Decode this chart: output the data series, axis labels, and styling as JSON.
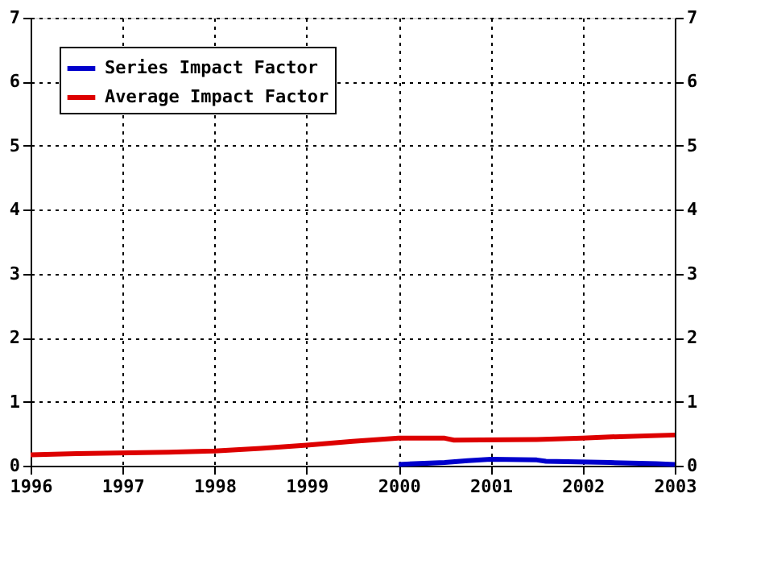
{
  "chart_data": {
    "type": "line",
    "x": [
      1996,
      1996.5,
      1997.5,
      1998,
      1998.5,
      1999,
      1999.5,
      2000,
      2000.5,
      2000.6,
      2001.5,
      2002,
      2002.3,
      2003
    ],
    "series": [
      {
        "name": "Series Impact Factor",
        "color": "#0000cc",
        "x": [
          2000,
          2000.5,
          2000.75,
          2001,
          2001.5,
          2001.6,
          2002.3,
          2002.8,
          2003
        ],
        "values": [
          0.02,
          0.05,
          0.08,
          0.1,
          0.09,
          0.07,
          0.05,
          0.03,
          0.02
        ]
      },
      {
        "name": "Average Impact Factor",
        "color": "#dd0000",
        "values": [
          0.17,
          0.19,
          0.21,
          0.23,
          0.27,
          0.32,
          0.38,
          0.43,
          0.43,
          0.4,
          0.41,
          0.43,
          0.45,
          0.48
        ]
      }
    ],
    "xlim": [
      1996,
      2003
    ],
    "xticks": [
      1996,
      1997,
      1998,
      1999,
      2000,
      2001,
      2002,
      2003
    ],
    "ylim": [
      0,
      7
    ],
    "yticks": [
      0,
      1,
      2,
      3,
      4,
      5,
      6,
      7
    ],
    "y2lim": [
      0,
      7
    ],
    "y2ticks": [
      0,
      1,
      2,
      3,
      4,
      5,
      6,
      7
    ],
    "grid": true,
    "legend": "top left",
    "marker": "none",
    "line_style": "solid"
  }
}
